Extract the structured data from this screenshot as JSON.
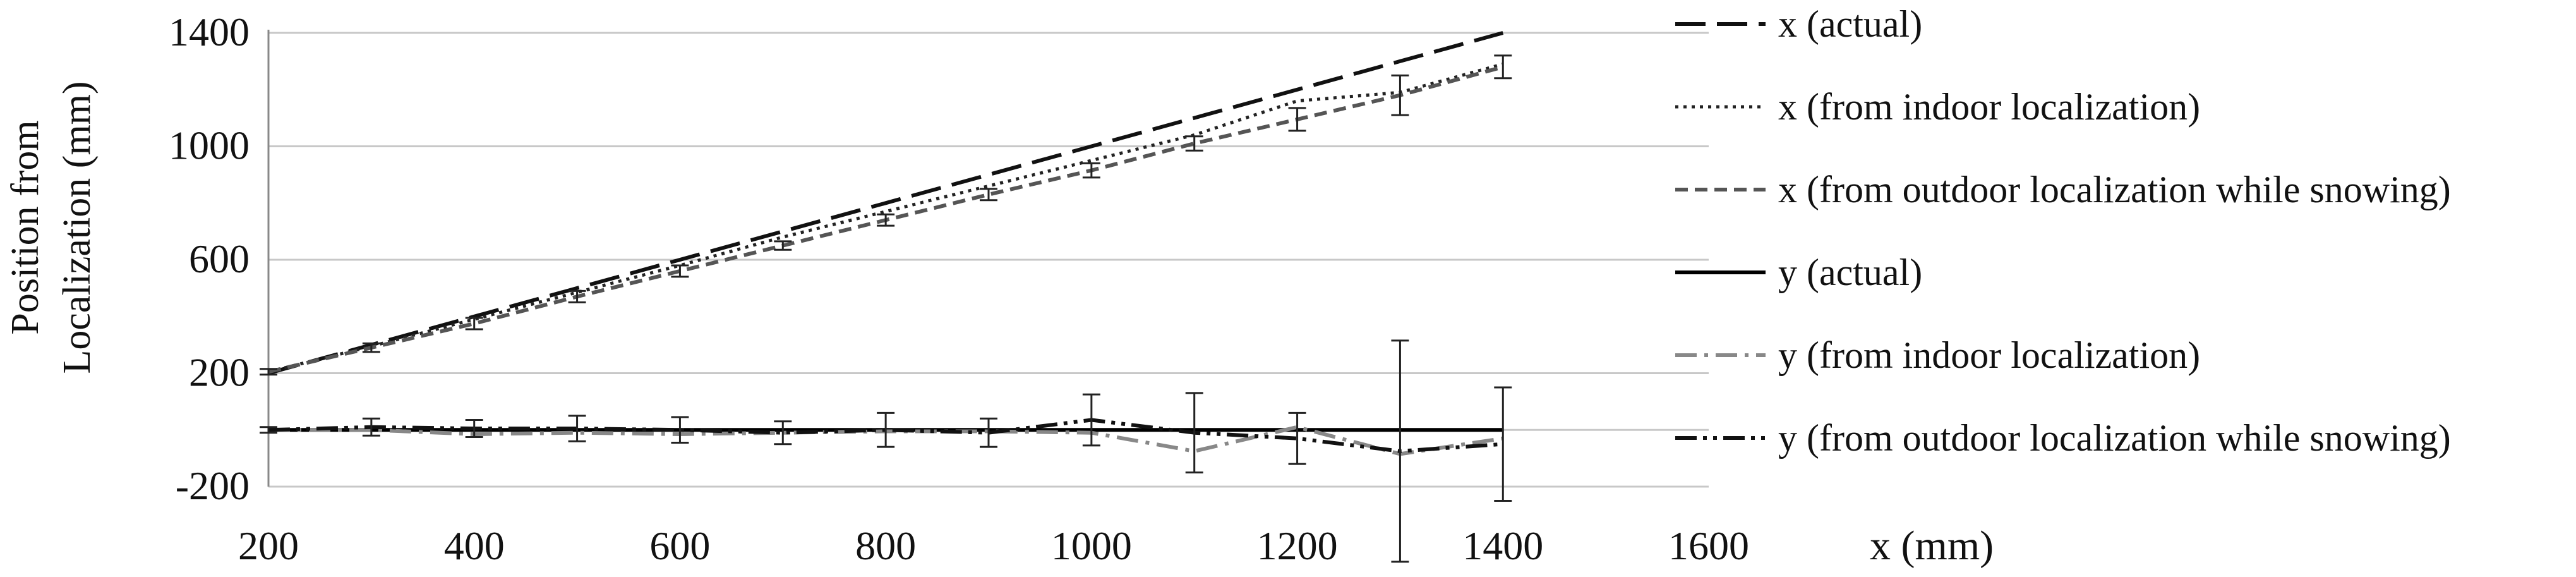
{
  "chart_data": {
    "type": "line",
    "title": "",
    "xlabel": "x (mm)",
    "ylabel_lines": [
      "Position from",
      "Localization  (mm)"
    ],
    "xlim": [
      200,
      1600
    ],
    "ylim": [
      -200,
      1400
    ],
    "xticks": [
      200,
      400,
      600,
      800,
      1000,
      1200,
      1400,
      1600
    ],
    "yticks": [
      -200,
      200,
      600,
      1000,
      1400
    ],
    "ytick_labels": [
      "-200",
      "200",
      "600",
      "1000",
      "1400"
    ],
    "xtick_labels": [
      "200",
      "400",
      "600",
      "800",
      "1000",
      "1200",
      "1400",
      "1600"
    ],
    "grid": "horizontal",
    "legend_position": "right",
    "x": [
      200,
      300,
      400,
      500,
      600,
      700,
      800,
      900,
      1000,
      1100,
      1200,
      1300,
      1400
    ],
    "series": [
      {
        "name": "x (actual)",
        "color": "#111111",
        "dash": "long-dash",
        "values": [
          200,
          300,
          400,
          500,
          600,
          700,
          800,
          900,
          1000,
          1100,
          1200,
          1300,
          1400
        ]
      },
      {
        "name": "x (from indoor localization)",
        "color": "#222222",
        "dash": "dotted",
        "values": [
          205,
          295,
          390,
          485,
          580,
          680,
          770,
          860,
          950,
          1040,
          1160,
          1190,
          1290
        ]
      },
      {
        "name": "x (from outdoor localization while snowing)",
        "color": "#555555",
        "dash": "short-dash",
        "values": [
          205,
          290,
          375,
          470,
          560,
          650,
          740,
          830,
          915,
          1010,
          1095,
          1180,
          1280
        ],
        "error": [
          10,
          15,
          20,
          20,
          20,
          15,
          20,
          20,
          25,
          25,
          40,
          70,
          40
        ]
      },
      {
        "name": "y (actual)",
        "color": "#000000",
        "dash": "solid",
        "values": [
          0,
          0,
          0,
          0,
          0,
          0,
          0,
          0,
          0,
          0,
          0,
          0,
          0
        ]
      },
      {
        "name": "y (from indoor localization)",
        "color": "#888888",
        "dash": "dash-dot",
        "values": [
          0,
          0,
          -15,
          -10,
          -15,
          -10,
          -5,
          -5,
          -10,
          -75,
          10,
          -85,
          -30
        ]
      },
      {
        "name": "y (from outdoor localization while snowing)",
        "color": "#111111",
        "dash": "dash-dot-dot",
        "values": [
          0,
          10,
          5,
          5,
          0,
          -10,
          0,
          -10,
          35,
          -10,
          -30,
          -75,
          -50
        ],
        "error": [
          10,
          30,
          30,
          45,
          45,
          40,
          60,
          50,
          90,
          140,
          90,
          390,
          200
        ]
      }
    ]
  }
}
